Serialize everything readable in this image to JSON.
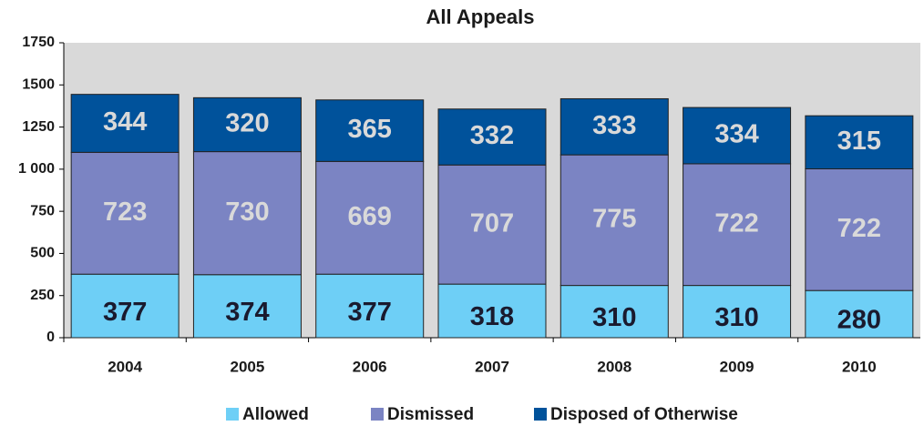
{
  "chart_data": {
    "type": "stacked_bar",
    "title": "All Appeals",
    "categories": [
      "2004",
      "2005",
      "2006",
      "2007",
      "2008",
      "2009",
      "2010"
    ],
    "series": [
      {
        "name": "Allowed",
        "color": "#6ecff6",
        "values": [
          377,
          374,
          377,
          318,
          310,
          310,
          280
        ]
      },
      {
        "name": "Dismissed",
        "color": "#7b84c3",
        "values": [
          723,
          730,
          669,
          707,
          775,
          722,
          722
        ]
      },
      {
        "name": "Disposed of Otherwise",
        "color": "#00529b",
        "values": [
          344,
          320,
          365,
          332,
          333,
          334,
          315
        ]
      }
    ],
    "ylim": [
      0,
      1750
    ],
    "yticks": [
      0,
      250,
      500,
      750,
      {
        "value": 1000,
        "label": "1 000"
      },
      1250,
      1500,
      1750
    ],
    "grid": false,
    "legend": "bottom"
  }
}
